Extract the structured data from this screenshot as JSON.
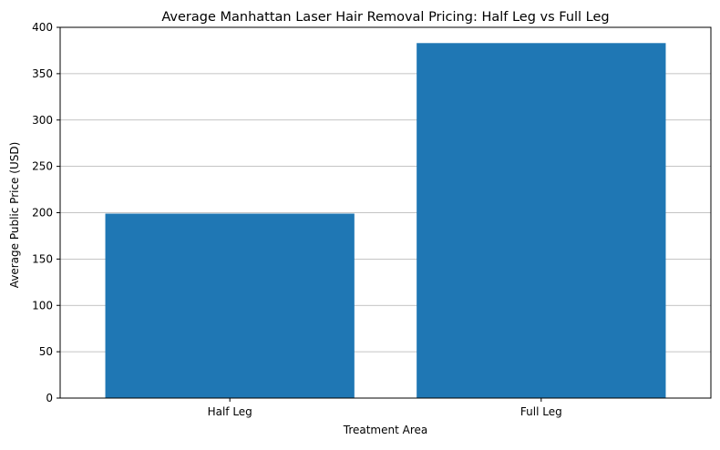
{
  "chart_data": {
    "type": "bar",
    "title": "Average Manhattan Laser Hair Removal Pricing: Half Leg vs Full Leg",
    "xlabel": "Treatment Area",
    "ylabel": "Average Public Price (USD)",
    "categories": [
      "Half Leg",
      "Full Leg"
    ],
    "values": [
      199,
      383
    ],
    "ylim": [
      0,
      400
    ],
    "yticks": [
      0,
      50,
      100,
      150,
      200,
      250,
      300,
      350,
      400
    ],
    "grid": "y-axis horizontal lines",
    "bar_color": "#1f77b4",
    "grid_color": "#b0b0b0"
  }
}
